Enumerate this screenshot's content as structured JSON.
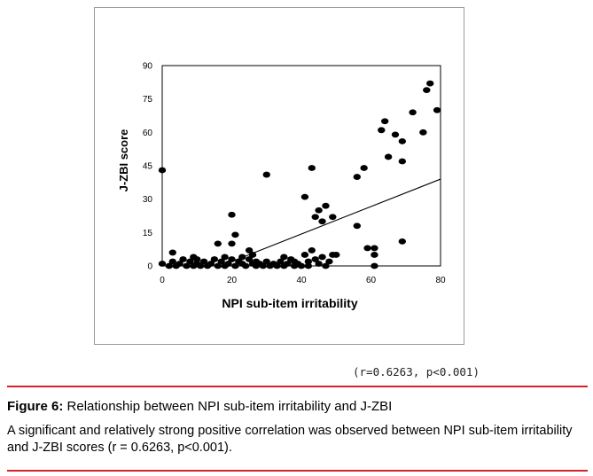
{
  "caption": {
    "figure_label": "Figure 6:",
    "title": "Relationship between NPI sub-item irritability and J-ZBI",
    "body": "A significant and relatively strong positive correlation was observed between NPI sub-item irritability and J-ZBI scores (r = 0.6263, p<0.001)."
  },
  "annotation": "(r=0.6263, p<0.001)",
  "colors": {
    "rule": "#d4242b",
    "points": "#000000",
    "frame": "#9a9a9a"
  },
  "chart_data": {
    "type": "scatter",
    "title": "",
    "xlabel": "NPI sub-item irritability",
    "ylabel": "J-ZBI score",
    "xlim": [
      0,
      80
    ],
    "ylim": [
      0,
      90
    ],
    "xticks": [
      0,
      20,
      40,
      60,
      80
    ],
    "yticks": [
      0,
      15,
      30,
      45,
      60,
      75,
      90
    ],
    "grid": false,
    "legend": "none",
    "trendline": {
      "from": [
        20,
        2
      ],
      "to": [
        80,
        39
      ]
    },
    "points": [
      [
        0,
        43
      ],
      [
        0,
        1
      ],
      [
        2,
        0
      ],
      [
        3,
        6
      ],
      [
        3,
        2
      ],
      [
        4,
        0
      ],
      [
        5,
        1
      ],
      [
        6,
        3
      ],
      [
        7,
        0
      ],
      [
        8,
        2
      ],
      [
        9,
        0
      ],
      [
        9,
        4
      ],
      [
        10,
        1
      ],
      [
        10,
        3
      ],
      [
        11,
        0
      ],
      [
        12,
        2
      ],
      [
        13,
        0
      ],
      [
        14,
        1
      ],
      [
        15,
        3
      ],
      [
        16,
        0
      ],
      [
        16,
        10
      ],
      [
        17,
        2
      ],
      [
        18,
        0
      ],
      [
        18,
        4
      ],
      [
        19,
        1
      ],
      [
        20,
        23
      ],
      [
        20,
        10
      ],
      [
        20,
        3
      ],
      [
        21,
        14
      ],
      [
        21,
        0
      ],
      [
        22,
        2
      ],
      [
        23,
        1
      ],
      [
        23,
        4
      ],
      [
        24,
        0
      ],
      [
        25,
        3
      ],
      [
        25,
        7
      ],
      [
        26,
        1
      ],
      [
        26,
        5
      ],
      [
        27,
        0
      ],
      [
        27,
        2
      ],
      [
        28,
        1
      ],
      [
        29,
        0
      ],
      [
        30,
        41
      ],
      [
        30,
        2
      ],
      [
        31,
        0
      ],
      [
        32,
        1
      ],
      [
        33,
        0
      ],
      [
        34,
        2
      ],
      [
        35,
        4
      ],
      [
        35,
        0
      ],
      [
        36,
        1
      ],
      [
        37,
        3
      ],
      [
        38,
        0
      ],
      [
        38,
        2
      ],
      [
        39,
        1
      ],
      [
        40,
        0
      ],
      [
        41,
        31
      ],
      [
        41,
        5
      ],
      [
        42,
        2
      ],
      [
        42,
        0
      ],
      [
        43,
        44
      ],
      [
        43,
        7
      ],
      [
        44,
        22
      ],
      [
        44,
        3
      ],
      [
        45,
        25
      ],
      [
        45,
        1
      ],
      [
        46,
        20
      ],
      [
        46,
        4
      ],
      [
        47,
        27
      ],
      [
        47,
        0
      ],
      [
        48,
        2
      ],
      [
        49,
        22
      ],
      [
        49,
        5
      ],
      [
        50,
        5
      ],
      [
        56,
        18
      ],
      [
        56,
        40
      ],
      [
        58,
        44
      ],
      [
        59,
        8
      ],
      [
        61,
        8
      ],
      [
        61,
        5
      ],
      [
        61,
        0
      ],
      [
        63,
        61
      ],
      [
        64,
        65
      ],
      [
        65,
        49
      ],
      [
        67,
        59
      ],
      [
        69,
        56
      ],
      [
        69,
        47
      ],
      [
        69,
        11
      ],
      [
        72,
        69
      ],
      [
        75,
        60
      ],
      [
        76,
        79
      ],
      [
        77,
        82
      ],
      [
        79,
        70
      ]
    ]
  }
}
